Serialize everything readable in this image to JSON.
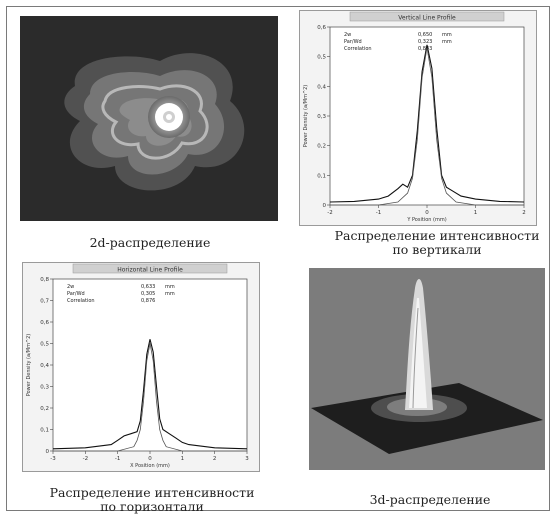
{
  "captions": {
    "heatmap": "2d-распределение",
    "vertical_line1": "Распределение интенсивности",
    "vertical_line2": "по вертикали",
    "horizontal_line1": "Распределение интенсивности",
    "horizontal_line2": "по горизонтали",
    "surface": "3d-распределение"
  },
  "chart_data": [
    {
      "type": "line",
      "title": "Vertical Line Profile",
      "xlabel": "Y Position (mm)",
      "ylabel": "Power Density (a/Mm^2)",
      "xlim": [
        -2,
        2
      ],
      "ylim": [
        0,
        0.6
      ],
      "x_ticks": [
        "-2",
        "-1",
        "0",
        "1",
        "2"
      ],
      "y_ticks": [
        "0",
        "0,1",
        "0,2",
        "0,3",
        "0,4",
        "0,5",
        "0,6"
      ],
      "stats": [
        {
          "label": "2w",
          "value": "0,650",
          "unit": "mm"
        },
        {
          "label": "Par/Wd",
          "value": "0,323",
          "unit": "mm"
        },
        {
          "label": "Correlation",
          "value": "0,843",
          "unit": ""
        }
      ],
      "series": [
        {
          "x": [
            -2,
            -1.5,
            -1,
            -0.8,
            -0.6,
            -0.5,
            -0.4,
            -0.3,
            -0.2,
            -0.1,
            0,
            0.1,
            0.2,
            0.3,
            0.4,
            0.5,
            0.7,
            1,
            1.5,
            2
          ],
          "values": [
            0.01,
            0.012,
            0.02,
            0.03,
            0.055,
            0.07,
            0.06,
            0.1,
            0.25,
            0.45,
            0.54,
            0.46,
            0.26,
            0.1,
            0.06,
            0.05,
            0.03,
            0.02,
            0.012,
            0.01
          ]
        },
        {
          "x": [
            -2,
            -1,
            -0.6,
            -0.4,
            -0.3,
            -0.2,
            -0.1,
            0,
            0.1,
            0.2,
            0.3,
            0.4,
            0.6,
            1,
            2
          ],
          "values": [
            0,
            0,
            0.01,
            0.04,
            0.09,
            0.22,
            0.43,
            0.53,
            0.43,
            0.22,
            0.09,
            0.04,
            0.01,
            0,
            0
          ]
        }
      ]
    },
    {
      "type": "line",
      "title": "Horizontal Line Profile",
      "xlabel": "X Position (mm)",
      "ylabel": "Power Density (a/Mm^2)",
      "xlim": [
        -3,
        3
      ],
      "ylim": [
        0,
        0.8
      ],
      "x_ticks": [
        "-3",
        "-2",
        "-1",
        "0",
        "1",
        "2",
        "3"
      ],
      "y_ticks": [
        "0",
        "0,1",
        "0,2",
        "0,3",
        "0,4",
        "0,5",
        "0,6",
        "0,7",
        "0,8"
      ],
      "stats": [
        {
          "label": "2w",
          "value": "0,633",
          "unit": "mm"
        },
        {
          "label": "Par/Wd",
          "value": "0,305",
          "unit": "mm"
        },
        {
          "label": "Correlation",
          "value": "0,876",
          "unit": ""
        }
      ],
      "series": [
        {
          "x": [
            -3,
            -2,
            -1.2,
            -1,
            -0.8,
            -0.6,
            -0.4,
            -0.3,
            -0.2,
            -0.1,
            0,
            0.1,
            0.2,
            0.3,
            0.4,
            0.6,
            0.8,
            1,
            1.2,
            2,
            3
          ],
          "values": [
            0.01,
            0.015,
            0.03,
            0.05,
            0.07,
            0.08,
            0.09,
            0.14,
            0.28,
            0.45,
            0.52,
            0.46,
            0.3,
            0.15,
            0.1,
            0.08,
            0.06,
            0.04,
            0.03,
            0.015,
            0.01
          ]
        },
        {
          "x": [
            -3,
            -1,
            -0.5,
            -0.4,
            -0.3,
            -0.2,
            -0.1,
            0,
            0.1,
            0.2,
            0.3,
            0.4,
            0.5,
            1,
            3
          ],
          "values": [
            0,
            0,
            0.02,
            0.05,
            0.1,
            0.23,
            0.42,
            0.5,
            0.42,
            0.23,
            0.1,
            0.05,
            0.02,
            0,
            0
          ]
        }
      ]
    }
  ]
}
